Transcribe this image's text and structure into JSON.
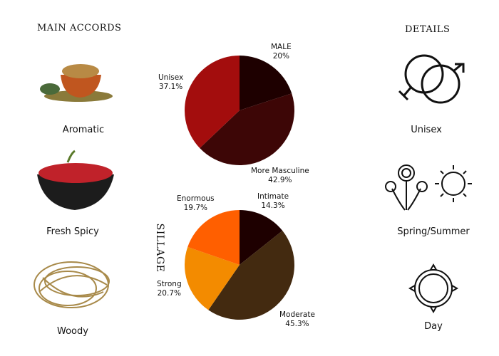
{
  "headings": {
    "main_accords": "MAIN ACCORDS",
    "details": "DETAILS",
    "sillage": "SILLAGE"
  },
  "accords": [
    {
      "label": "Aromatic"
    },
    {
      "label": "Fresh Spicy"
    },
    {
      "label": "Woody"
    }
  ],
  "details": [
    {
      "label": "Unisex",
      "icon": "gender-icon"
    },
    {
      "label": "Spring/Summer",
      "icon": "flowers-sun-icon"
    },
    {
      "label": "Day",
      "icon": "sun-icon"
    }
  ],
  "chart_data": [
    {
      "type": "pie",
      "title": "",
      "slices": [
        {
          "label": "MALE",
          "value": 20,
          "text": "20%",
          "color": "#1e0000"
        },
        {
          "label": "More Masculine",
          "value": 42.9,
          "text": "42.9%",
          "color": "#3d0606"
        },
        {
          "label": "Unisex",
          "value": 37.1,
          "text": "37.1%",
          "color": "#a30d0d"
        }
      ]
    },
    {
      "type": "pie",
      "title": "SILLAGE",
      "slices": [
        {
          "label": "Intimate",
          "value": 14.3,
          "text": "14.3%",
          "color": "#1e0000"
        },
        {
          "label": "Moderate",
          "value": 45.3,
          "text": "45.3%",
          "color": "#432a10"
        },
        {
          "label": "Strong",
          "value": 20.7,
          "text": "20.7%",
          "color": "#f38b00"
        },
        {
          "label": "Enormous",
          "value": 19.7,
          "text": "19.7%",
          "color": "#ff5f00"
        }
      ]
    }
  ]
}
